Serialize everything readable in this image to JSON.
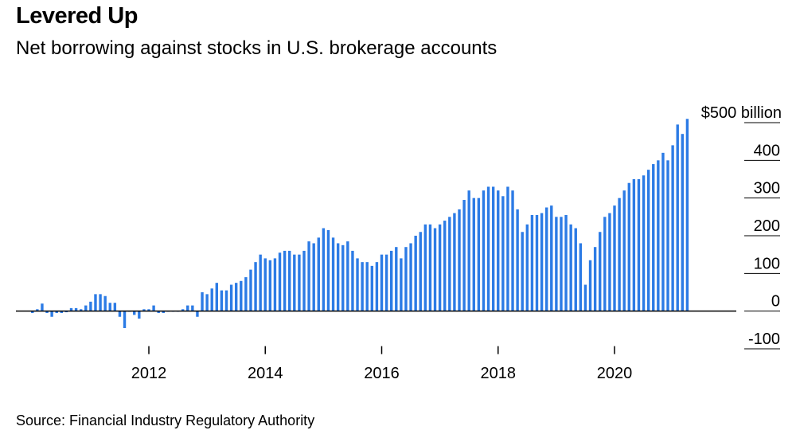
{
  "title": "Levered Up",
  "subtitle": "Net borrowing against stocks in U.S. brokerage accounts",
  "source": "Source: Financial Industry Regulatory Authority",
  "colors": {
    "bar": "#2c7be5",
    "axis": "#000000",
    "grid": "#000000"
  },
  "chart_data": {
    "type": "bar",
    "title": "Levered Up",
    "subtitle": "Net borrowing against stocks in U.S. brokerage accounts",
    "ylabel": "",
    "ylim": [
      -100,
      500
    ],
    "y_ticks": [
      -100,
      0,
      100,
      200,
      300,
      400,
      500
    ],
    "y_tick_labels": [
      "-100",
      "0",
      "100",
      "200",
      "300",
      "400",
      "$500 billion"
    ],
    "y_axis_position": "right",
    "x_ticks": [
      2012,
      2014,
      2016,
      2018,
      2020
    ],
    "x_tick_labels": [
      "2012",
      "2014",
      "2016",
      "2018",
      "2020"
    ],
    "grid": true,
    "legend": "none",
    "x_start": "2010-01",
    "x_end": "2021-10",
    "frequency": "monthly",
    "series": [
      {
        "values": [
          -5,
          5,
          20,
          -5,
          -15,
          -5,
          -5,
          -3,
          8,
          8,
          5,
          15,
          25,
          45,
          45,
          40,
          22,
          22,
          -15,
          -45,
          0,
          -10,
          -20,
          5,
          5,
          15,
          -5,
          -5,
          0,
          0,
          0,
          5,
          15,
          15,
          -15,
          50,
          45,
          60,
          75,
          55,
          55,
          70,
          75,
          80,
          90,
          110,
          130,
          150,
          140,
          135,
          140,
          155,
          160,
          160,
          150,
          150,
          160,
          185,
          180,
          195,
          220,
          215,
          195,
          180,
          175,
          185,
          160,
          140,
          130,
          130,
          120,
          130,
          150,
          150,
          160,
          170,
          140,
          170,
          180,
          200,
          210,
          230,
          230,
          220,
          230,
          240,
          250,
          260,
          270,
          295,
          320,
          300,
          300,
          320,
          330,
          330,
          320,
          305,
          330,
          320,
          270,
          210,
          230,
          255,
          255,
          260,
          275,
          280,
          250,
          250,
          255,
          230,
          220,
          180,
          70,
          135,
          170,
          210,
          250,
          260,
          280,
          300,
          320,
          340,
          350,
          350,
          360,
          375,
          390,
          400,
          420,
          400,
          440,
          495,
          470,
          510
        ]
      }
    ]
  }
}
